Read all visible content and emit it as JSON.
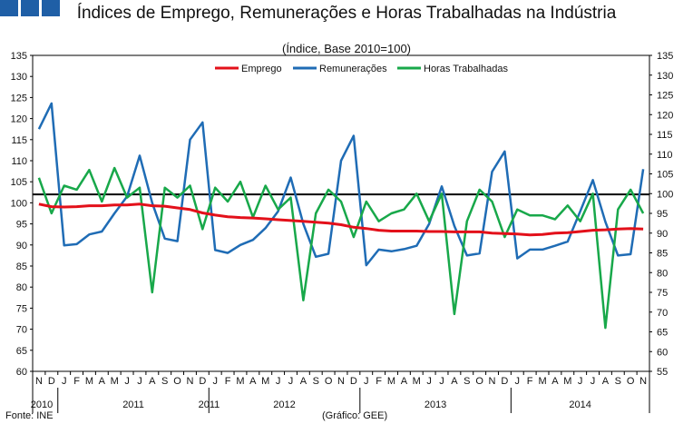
{
  "logo": {
    "icon": "ine-logo-icon"
  },
  "chart_data": {
    "type": "line",
    "title": "Índices de Emprego, Remunerações e Horas Trabalhadas na Indústria",
    "subtitle": "(Índice, Base 2010=100)",
    "source": "Fonte: INE",
    "credit": "(Gráfico: GEE)",
    "y_left": {
      "min": 60,
      "max": 135,
      "step": 5
    },
    "y_right": {
      "min": 55,
      "max": 135,
      "step": 5
    },
    "x_months": [
      "N",
      "D",
      "J",
      "F",
      "M",
      "A",
      "M",
      "J",
      "J",
      "A",
      "S",
      "O",
      "N",
      "D",
      "J",
      "F",
      "M",
      "A",
      "M",
      "J",
      "J",
      "A",
      "S",
      "O",
      "N",
      "D",
      "J",
      "F",
      "M",
      "A",
      "M",
      "J",
      "J",
      "A",
      "S",
      "O",
      "N",
      "D",
      "J",
      "F",
      "M",
      "A",
      "M",
      "J",
      "J",
      "A",
      "S",
      "O",
      "N"
    ],
    "year_labels": [
      {
        "label": "2010",
        "start": 0,
        "end": 1
      },
      {
        "label": "2011",
        "start": 2,
        "end": 13
      },
      {
        "label": "2011",
        "start": 13,
        "end": 13
      },
      {
        "label": "2012",
        "start": 14,
        "end": 25
      },
      {
        "label": "2013",
        "start": 26,
        "end": 37
      },
      {
        "label": "2014",
        "start": 38,
        "end": 48
      }
    ],
    "reference_line": {
      "value": 102,
      "axis": "left",
      "color": "#000000"
    },
    "series": [
      {
        "name": "Emprego",
        "axis": "left",
        "color": "#e3101a",
        "values": [
          99.7,
          99.1,
          99.0,
          99.1,
          99.3,
          99.3,
          99.5,
          99.5,
          99.7,
          99.3,
          99.2,
          98.8,
          98.4,
          97.6,
          97.1,
          96.7,
          96.5,
          96.4,
          96.2,
          96.0,
          95.8,
          95.6,
          95.4,
          95.2,
          94.8,
          94.2,
          93.9,
          93.5,
          93.3,
          93.3,
          93.3,
          93.2,
          93.2,
          93.1,
          93.1,
          93.1,
          92.8,
          92.7,
          92.6,
          92.4,
          92.5,
          92.8,
          92.9,
          93.2,
          93.5,
          93.6,
          93.8,
          93.9,
          93.8
        ]
      },
      {
        "name": "Remunerações",
        "axis": "left",
        "color": "#1f6cb5",
        "values": [
          117.5,
          123.6,
          89.9,
          90.2,
          92.5,
          93.2,
          97.5,
          101.5,
          111.2,
          100.0,
          91.5,
          90.9,
          115.0,
          119.1,
          88.8,
          88.1,
          90.0,
          91.2,
          94.0,
          98.0,
          106.0,
          95.0,
          87.2,
          87.9,
          110.0,
          115.9,
          85.2,
          88.9,
          88.5,
          89.0,
          89.8,
          95.0,
          103.9,
          94.5,
          87.5,
          88.0,
          107.4,
          112.2,
          86.8,
          88.9,
          88.9,
          89.8,
          90.8,
          98.0,
          105.4,
          95.5,
          87.5,
          87.8,
          108.0
        ]
      },
      {
        "name": "Horas Trabalhadas",
        "axis": "right",
        "color": "#18a84a",
        "values": [
          104,
          95,
          102,
          101,
          106,
          98,
          106.5,
          99,
          101.5,
          75,
          101.5,
          99,
          102,
          91,
          101.5,
          98,
          103,
          94,
          102,
          96,
          99,
          73,
          95,
          101,
          98,
          89,
          98,
          93,
          95,
          96,
          100,
          93,
          100,
          69.5,
          93,
          101,
          98,
          89,
          96,
          94.5,
          94.5,
          93.5,
          97,
          93,
          100,
          66,
          96,
          101,
          95
        ]
      }
    ]
  }
}
